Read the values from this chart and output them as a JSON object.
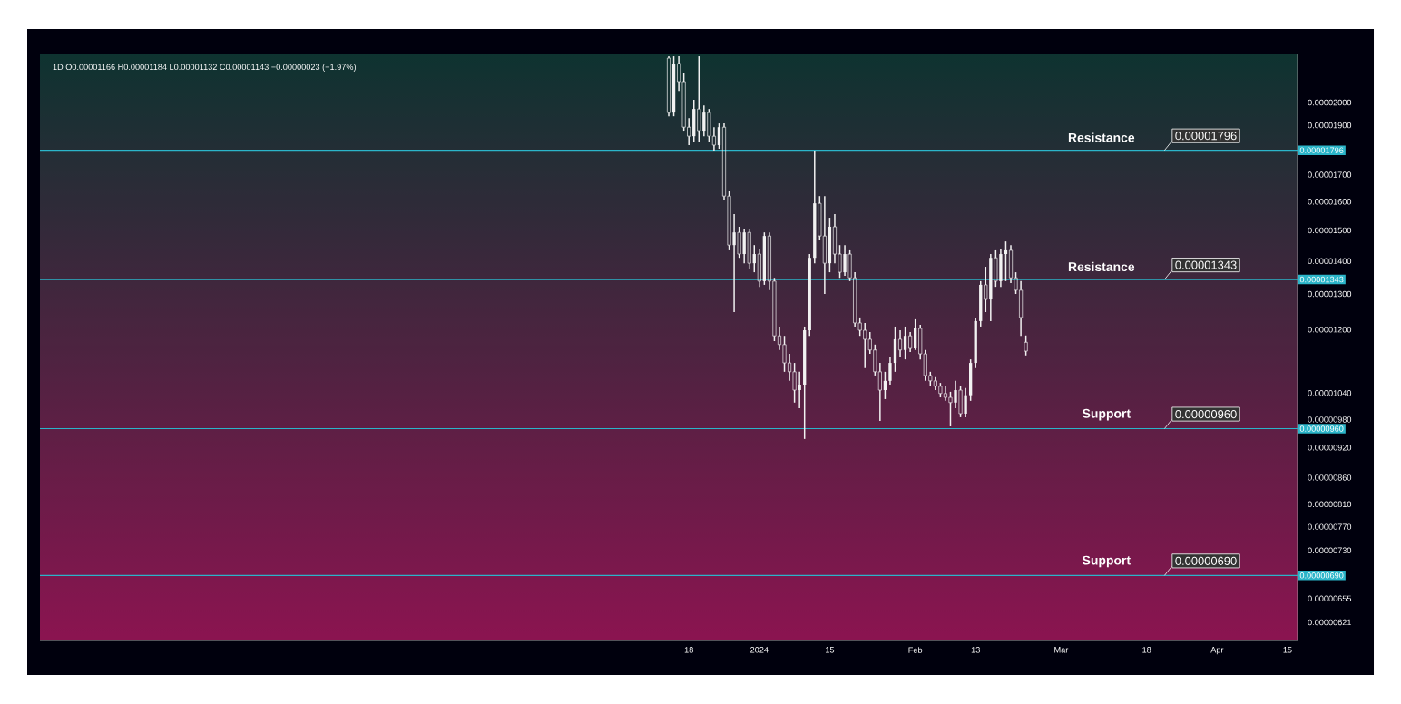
{
  "chart_data": {
    "type": "candlestick",
    "log": "y",
    "color": "#f2f2f2",
    "annotations": [
      "1D  O0.00001166 H0.00001184 L0.00001132 C0.00001143 −0.00000023 (−1.97%)",
      {
        "text": "Resistance",
        "x": "2024-03-09",
        "y": 1.796e-05
      },
      {
        "text": "Resistance",
        "x": "2024-03-09",
        "y": 1.343e-05
      },
      {
        "text": "Support",
        "x": "2024-03-10",
        "y": 9.6e-06
      },
      {
        "text": "Support",
        "x": "2024-03-10",
        "y": 6.9e-06
      }
    ],
    "ref_lines": [
      {
        "axis": "y",
        "value": 1.796e-05,
        "label": "0.00001796",
        "color": "#2bb5c9"
      },
      {
        "axis": "y",
        "value": 1.343e-05,
        "label": "0.00001343",
        "color": "#2bb5c9"
      },
      {
        "axis": "y",
        "value": 9.6e-06,
        "label": "0.00000960",
        "color": "#2bb5c9"
      },
      {
        "axis": "y",
        "value": 6.9e-06,
        "label": "0.00000690",
        "color": "#2bb5c9"
      }
    ],
    "xlim": [
      "2023-08-11",
      "2024-04-17"
    ],
    "xticks": [
      {
        "value": "2023-12-18",
        "label": "18"
      },
      {
        "value": "2024-01-01",
        "label": "2024"
      },
      {
        "value": "2024-01-15",
        "label": "15"
      },
      {
        "value": "2024-02-01",
        "label": "Feb"
      },
      {
        "value": "2024-02-13",
        "label": "13"
      },
      {
        "value": "2024-03-01",
        "label": "Mar"
      },
      {
        "value": "2024-03-18",
        "label": "18"
      },
      {
        "value": "2024-04-01",
        "label": "Apr"
      },
      {
        "value": "2024-04-15",
        "label": "15"
      }
    ],
    "ylim": [
      5.96e-06,
      2.228e-05
    ],
    "yticks": [
      {
        "value": 2e-05,
        "label": "0.00002000"
      },
      {
        "value": 1.9e-05,
        "label": "0.00001900"
      },
      {
        "value": 1.7e-05,
        "label": "0.00001700"
      },
      {
        "value": 1.6e-05,
        "label": "0.00001600"
      },
      {
        "value": 1.5e-05,
        "label": "0.00001500"
      },
      {
        "value": 1.4e-05,
        "label": "0.00001400"
      },
      {
        "value": 1.3e-05,
        "label": "0.00001300"
      },
      {
        "value": 1.2e-05,
        "label": "0.00001200"
      },
      {
        "value": 1.04e-05,
        "label": "0.00001040"
      },
      {
        "value": 9.8e-06,
        "label": "0.00000980"
      },
      {
        "value": 9.2e-06,
        "label": "0.00000920"
      },
      {
        "value": 8.6e-06,
        "label": "0.00000860"
      },
      {
        "value": 8.1e-06,
        "label": "0.00000810"
      },
      {
        "value": 7.7e-06,
        "label": "0.00000770"
      },
      {
        "value": 7.3e-06,
        "label": "0.00000730"
      },
      {
        "value": 6.55e-06,
        "label": "0.00000655"
      },
      {
        "value": 6.21e-06,
        "label": "0.00000621"
      }
    ],
    "x": [
      "2023-12-14",
      "2023-12-15",
      "2023-12-16",
      "2023-12-17",
      "2023-12-18",
      "2023-12-19",
      "2023-12-20",
      "2023-12-21",
      "2023-12-22",
      "2023-12-23",
      "2023-12-24",
      "2023-12-25",
      "2023-12-26",
      "2023-12-27",
      "2023-12-28",
      "2023-12-29",
      "2023-12-30",
      "2023-12-31",
      "2024-01-01",
      "2024-01-02",
      "2024-01-03",
      "2024-01-04",
      "2024-01-05",
      "2024-01-06",
      "2024-01-07",
      "2024-01-08",
      "2024-01-09",
      "2024-01-10",
      "2024-01-11",
      "2024-01-12",
      "2024-01-13",
      "2024-01-14",
      "2024-01-15",
      "2024-01-16",
      "2024-01-17",
      "2024-01-18",
      "2024-01-19",
      "2024-01-20",
      "2024-01-21",
      "2024-01-22",
      "2024-01-23",
      "2024-01-24",
      "2024-01-25",
      "2024-01-26",
      "2024-01-27",
      "2024-01-28",
      "2024-01-29",
      "2024-01-30",
      "2024-01-31",
      "2024-02-01",
      "2024-02-02",
      "2024-02-03",
      "2024-02-04",
      "2024-02-05",
      "2024-02-06",
      "2024-02-07",
      "2024-02-08",
      "2024-02-09",
      "2024-02-10",
      "2024-02-11",
      "2024-02-12",
      "2024-02-13",
      "2024-02-14",
      "2024-02-15",
      "2024-02-16",
      "2024-02-17",
      "2024-02-18",
      "2024-02-19",
      "2024-02-20",
      "2024-02-21",
      "2024-02-22",
      "2024-02-23"
    ],
    "ohlc": [
      [
        2.21e-05,
        2.219e-05,
        1.939e-05,
        1.955e-05
      ],
      [
        1.955e-05,
        2.219e-05,
        1.939e-05,
        2.183e-05
      ],
      [
        2.183e-05,
        2.219e-05,
        2.053e-05,
        2.096e-05
      ],
      [
        2.096e-05,
        2.139e-05,
        1.877e-05,
        1.892e-05
      ],
      [
        1.892e-05,
        1.931e-05,
        1.817e-05,
        1.854e-05
      ],
      [
        1.854e-05,
        2.012e-05,
        1.831e-05,
        1.971e-05
      ],
      [
        1.971e-05,
        2.219e-05,
        1.831e-05,
        1.877e-05
      ],
      [
        1.877e-05,
        1.987e-05,
        1.854e-05,
        1.955e-05
      ],
      [
        1.955e-05,
        1.971e-05,
        1.831e-05,
        1.854e-05
      ],
      [
        1.854e-05,
        1.892e-05,
        1.795e-05,
        1.817e-05
      ],
      [
        1.817e-05,
        1.908e-05,
        1.802e-05,
        1.892e-05
      ],
      [
        1.892e-05,
        1.908e-05,
        1.607e-05,
        1.62e-05
      ],
      [
        1.62e-05,
        1.64e-05,
        1.434e-05,
        1.451e-05
      ],
      [
        1.451e-05,
        1.556e-05,
        1.248e-05,
        1.493e-05
      ],
      [
        1.493e-05,
        1.512e-05,
        1.41e-05,
        1.422e-05
      ],
      [
        1.422e-05,
        1.506e-05,
        1.393e-05,
        1.493e-05
      ],
      [
        1.493e-05,
        1.506e-05,
        1.376e-05,
        1.393e-05
      ],
      [
        1.393e-05,
        1.451e-05,
        1.365e-05,
        1.422e-05
      ],
      [
        1.422e-05,
        1.44e-05,
        1.321e-05,
        1.338e-05
      ],
      [
        1.338e-05,
        1.493e-05,
        1.327e-05,
        1.481e-05
      ],
      [
        1.481e-05,
        1.493e-05,
        1.311e-05,
        1.338e-05
      ],
      [
        1.338e-05,
        1.348e-05,
        1.169e-05,
        1.183e-05
      ],
      [
        1.183e-05,
        1.208e-05,
        1.146e-05,
        1.16e-05
      ],
      [
        1.16e-05,
        1.183e-05,
        1.091e-05,
        1.113e-05
      ],
      [
        1.113e-05,
        1.136e-05,
        1.069e-05,
        1.091e-05
      ],
      [
        1.091e-05,
        1.113e-05,
        1.018e-05,
        1.047e-05
      ],
      [
        1.047e-05,
        1.091e-05,
        1.005e-05,
        1.06e-05
      ],
      [
        1.06e-05,
        1.208e-05,
        9.38e-06,
        1.198e-05
      ],
      [
        1.198e-05,
        1.422e-05,
        1.183e-05,
        1.41e-05
      ],
      [
        1.41e-05,
        1.795e-05,
        1.393e-05,
        1.594e-05
      ],
      [
        1.594e-05,
        1.62e-05,
        1.469e-05,
        1.481e-05
      ],
      [
        1.481e-05,
        1.62e-05,
        1.3e-05,
        1.393e-05
      ],
      [
        1.393e-05,
        1.543e-05,
        1.365e-05,
        1.512e-05
      ],
      [
        1.512e-05,
        1.556e-05,
        1.393e-05,
        1.422e-05
      ],
      [
        1.422e-05,
        1.451e-05,
        1.348e-05,
        1.365e-05
      ],
      [
        1.365e-05,
        1.451e-05,
        1.354e-05,
        1.422e-05
      ],
      [
        1.422e-05,
        1.434e-05,
        1.338e-05,
        1.348e-05
      ],
      [
        1.348e-05,
        1.365e-05,
        1.208e-05,
        1.218e-05
      ],
      [
        1.218e-05,
        1.233e-05,
        1.183e-05,
        1.198e-05
      ],
      [
        1.198e-05,
        1.218e-05,
        1.1e-05,
        1.174e-05
      ],
      [
        1.174e-05,
        1.193e-05,
        1.136e-05,
        1.146e-05
      ],
      [
        1.146e-05,
        1.16e-05,
        1.082e-05,
        1.091e-05
      ],
      [
        1.091e-05,
        1.113e-05,
        9.77e-06,
        1.047e-05
      ],
      [
        1.047e-05,
        1.091e-05,
        1.026e-05,
        1.069e-05
      ],
      [
        1.069e-05,
        1.127e-05,
        1.06e-05,
        1.113e-05
      ],
      [
        1.113e-05,
        1.208e-05,
        1.091e-05,
        1.174e-05
      ],
      [
        1.174e-05,
        1.198e-05,
        1.127e-05,
        1.146e-05
      ],
      [
        1.146e-05,
        1.208e-05,
        1.122e-05,
        1.183e-05
      ],
      [
        1.183e-05,
        1.193e-05,
        1.141e-05,
        1.15e-05
      ],
      [
        1.15e-05,
        1.228e-05,
        1.146e-05,
        1.203e-05
      ],
      [
        1.203e-05,
        1.213e-05,
        1.122e-05,
        1.136e-05
      ],
      [
        1.136e-05,
        1.146e-05,
        1.069e-05,
        1.082e-05
      ],
      [
        1.082e-05,
        1.091e-05,
        1.056e-05,
        1.069e-05
      ],
      [
        1.069e-05,
        1.078e-05,
        1.047e-05,
        1.056e-05
      ],
      [
        1.056e-05,
        1.064e-05,
        1.03e-05,
        1.039e-05
      ],
      [
        1.039e-05,
        1.056e-05,
        1.022e-05,
        1.03e-05
      ],
      [
        1.03e-05,
        1.043e-05,
        9.65e-06,
        1.018e-05
      ],
      [
        1.018e-05,
        1.069e-05,
        1.005e-05,
        1.047e-05
      ],
      [
        1.047e-05,
        1.056e-05,
        9.85e-06,
        9.93e-06
      ],
      [
        9.93e-06,
        1.052e-05,
        9.85e-06,
        1.035e-05
      ],
      [
        1.035e-05,
        1.122e-05,
        1.022e-05,
        1.113e-05
      ],
      [
        1.113e-05,
        1.233e-05,
        1.1e-05,
        1.223e-05
      ],
      [
        1.223e-05,
        1.338e-05,
        1.208e-05,
        1.327e-05
      ],
      [
        1.327e-05,
        1.382e-05,
        1.248e-05,
        1.284e-05
      ],
      [
        1.284e-05,
        1.422e-05,
        1.223e-05,
        1.41e-05
      ],
      [
        1.41e-05,
        1.434e-05,
        1.321e-05,
        1.338e-05
      ],
      [
        1.338e-05,
        1.44e-05,
        1.321e-05,
        1.422e-05
      ],
      [
        1.422e-05,
        1.463e-05,
        1.338e-05,
        1.434e-05
      ],
      [
        1.434e-05,
        1.451e-05,
        1.332e-05,
        1.348e-05
      ],
      [
        1.348e-05,
        1.365e-05,
        1.3e-05,
        1.311e-05
      ],
      [
        1.311e-05,
        1.338e-05,
        1.183e-05,
        1.233e-05
      ],
      [
        1.166e-05,
        1.184e-05,
        1.132e-05,
        1.143e-05
      ]
    ]
  }
}
